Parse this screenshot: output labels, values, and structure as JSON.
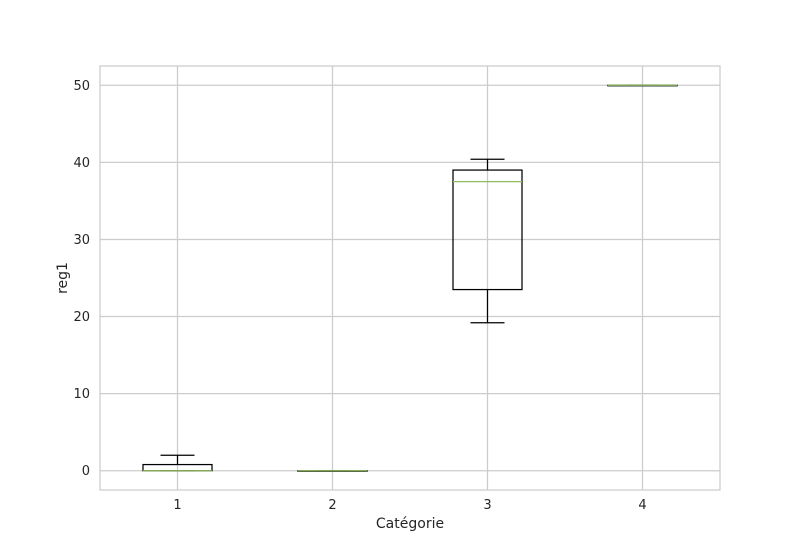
{
  "chart_data": {
    "type": "boxplot",
    "title": "",
    "xlabel": "Catégorie",
    "ylabel": "reg1",
    "categories": [
      "1",
      "2",
      "3",
      "4"
    ],
    "ylim": [
      -2.5,
      52.5
    ],
    "yticks": [
      0,
      10,
      20,
      30,
      40,
      50
    ],
    "grid": true,
    "boxes": [
      {
        "category": "1",
        "whisker_low": 0,
        "q1": 0,
        "median": 0,
        "q3": 0.8,
        "whisker_high": 2
      },
      {
        "category": "2",
        "whisker_low": 0,
        "q1": 0,
        "median": 0,
        "q3": 0,
        "whisker_high": 0
      },
      {
        "category": "3",
        "whisker_low": 19.2,
        "q1": 23.5,
        "median": 37.5,
        "q3": 39,
        "whisker_high": 40.4
      },
      {
        "category": "4",
        "whisker_low": 50,
        "q1": 50,
        "median": 50,
        "q3": 50,
        "whisker_high": 50
      }
    ],
    "colors": {
      "box": "#000000",
      "median": "#8fbc5f",
      "grid": "#cccccc",
      "frame": "#cccccc"
    }
  }
}
